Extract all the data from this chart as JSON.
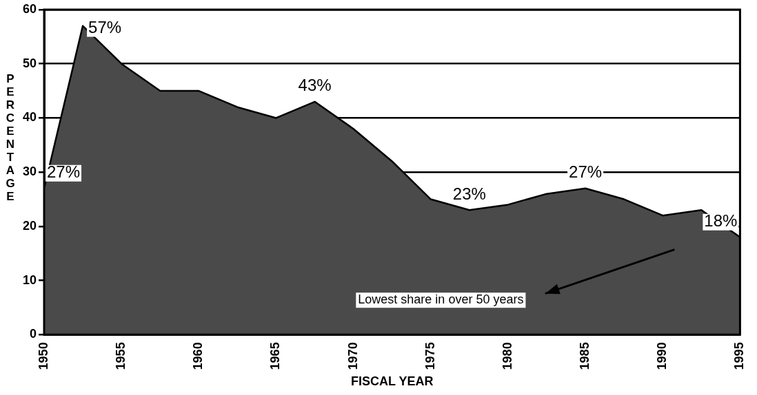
{
  "chart_data": {
    "type": "area",
    "xlabel": "FISCAL YEAR",
    "ylabel": "PERCENTAGE",
    "x": [
      1950,
      1952.5,
      1955,
      1957.5,
      1960,
      1962.5,
      1965,
      1967.5,
      1970,
      1972.5,
      1975,
      1977.5,
      1980,
      1982.5,
      1985,
      1987.5,
      1990,
      1992.5,
      1995
    ],
    "series": [
      {
        "color": "#4a4a4a",
        "values": [
          27,
          57,
          50,
          45,
          45,
          42,
          40,
          43,
          38,
          32,
          25,
          23,
          24,
          26,
          27,
          25,
          22,
          23,
          18
        ]
      }
    ],
    "xlim": [
      1950,
      1995
    ],
    "xticks": [
      1950,
      1955,
      1960,
      1965,
      1970,
      1975,
      1980,
      1985,
      1990,
      1995
    ],
    "ylim": [
      0,
      60
    ],
    "yticks": [
      0,
      10,
      20,
      30,
      40,
      50,
      60
    ],
    "grid": "y",
    "legend": false,
    "annotations": [
      {
        "text": "27%",
        "x": 1950,
        "y": 27
      },
      {
        "text": "57%",
        "x": 1952.5,
        "y": 57
      },
      {
        "text": "43%",
        "x": 1967.5,
        "y": 43
      },
      {
        "text": "23%",
        "x": 1977.5,
        "y": 23
      },
      {
        "text": "27%",
        "x": 1985,
        "y": 27
      },
      {
        "text": "18%",
        "x": 1995,
        "y": 18
      },
      "Lowest share in over 50 years"
    ]
  }
}
